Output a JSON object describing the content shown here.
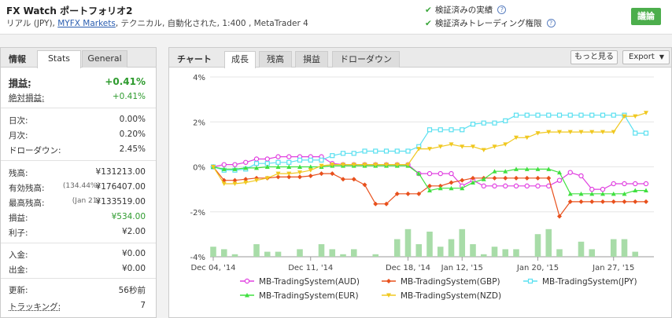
{
  "header": {
    "title": "FX Watch ポートフォリオ2",
    "subtitle_pre": "リアル (JPY), ",
    "broker_link": "MYFX Markets",
    "subtitle_post": ", テクニカル, 自動化された, 1:400 , MetaTrader 4",
    "verify_record": "検証済みの実績",
    "verify_trading": "検証済みトレーディング権限",
    "discuss_label": "議論",
    "check_glyph": "✔",
    "help_glyph": "?"
  },
  "left_panel": {
    "title": "情報",
    "tab_stats": "Stats",
    "tab_general": "General",
    "gain_label": "損益:",
    "gain_value": "+0.41%",
    "abs_gain_label": "絶対損益:",
    "abs_gain_value": "+0.41%",
    "daily_label": "日次:",
    "daily_value": "0.00%",
    "monthly_label": "月次:",
    "monthly_value": "0.20%",
    "drawdown_label": "ドローダウン:",
    "drawdown_value": "2.45%",
    "balance_label": "残高:",
    "balance_value": "¥131213.00",
    "equity_label": "有効残高:",
    "equity_pct": "(134.44%)",
    "equity_value": "¥176407.00",
    "highest_label": "最高残高:",
    "highest_date": "(Jan 21)",
    "highest_value": "¥133519.00",
    "profit_label": "損益:",
    "profit_value": "¥534.00",
    "interest_label": "利子:",
    "interest_value": "¥2.00",
    "deposits_label": "入金:",
    "deposits_value": "¥0.00",
    "withdrawals_label": "出金:",
    "withdrawals_value": "¥0.00",
    "updated_label": "更新:",
    "updated_value": "56秒前",
    "tracking_label": "トラッキング:",
    "tracking_value": "7"
  },
  "chart_panel": {
    "title": "チャート",
    "tabs": [
      "成長",
      "残高",
      "損益",
      "ドローダウン"
    ],
    "more_label": "もっと見る",
    "export_label": "Export",
    "export_chevron": "▼"
  },
  "chart_data": {
    "type": "line",
    "y_ticks": [
      "4%",
      "2%",
      "0%",
      "-2%",
      "-4%"
    ],
    "ylim": [
      -4,
      4
    ],
    "x_ticks": [
      "Dec 04, '14",
      "Dec 11, '14",
      "Dec 18, '14",
      "Jan 12, '15",
      "Jan 20, '15",
      "Jan 27, '15"
    ],
    "colors": {
      "AUD": "#e040e0",
      "GBP": "#e8501c",
      "JPY": "#5ae0f0",
      "EUR": "#40e040",
      "NZD": "#f0c820",
      "bars": "#a8dca8"
    },
    "series": [
      {
        "name": "MB-TradingSystem(AUD)",
        "key": "AUD",
        "marker": "circle",
        "values": [
          0,
          0.1,
          0.1,
          0.2,
          0.35,
          0.35,
          0.45,
          0.45,
          0.45,
          0.45,
          0.45,
          0.15,
          0.1,
          0.1,
          0.1,
          0.1,
          0.1,
          0.1,
          0.1,
          -0.3,
          -0.3,
          -0.3,
          -0.3,
          -0.85,
          -0.6,
          -0.85,
          -0.85,
          -0.85,
          -0.85,
          -0.85,
          -0.85,
          -0.85,
          -0.6,
          -0.25,
          -0.4,
          -1.0,
          -1.0,
          -0.75,
          -0.75,
          -0.75,
          -0.75
        ]
      },
      {
        "name": "MB-TradingSystem(GBP)",
        "key": "GBP",
        "marker": "diamond",
        "values": [
          0,
          -0.6,
          -0.6,
          -0.55,
          -0.5,
          -0.5,
          -0.45,
          -0.45,
          -0.45,
          -0.4,
          -0.3,
          -0.3,
          -0.55,
          -0.55,
          -0.8,
          -1.65,
          -1.65,
          -1.2,
          -1.2,
          -1.2,
          -0.85,
          -0.85,
          -0.7,
          -0.6,
          -0.5,
          -0.5,
          -0.5,
          -0.5,
          -0.5,
          -0.5,
          -0.5,
          -0.5,
          -2.2,
          -1.55,
          -1.55,
          -1.55,
          -1.55,
          -1.55,
          -1.55,
          -1.55,
          -1.55
        ]
      },
      {
        "name": "MB-TradingSystem(JPY)",
        "key": "JPY",
        "marker": "square",
        "values": [
          0,
          -0.15,
          -0.15,
          -0.1,
          0.15,
          0.15,
          0.2,
          0.2,
          0.3,
          0.3,
          0.3,
          0.5,
          0.6,
          0.6,
          0.7,
          0.7,
          0.7,
          0.7,
          0.7,
          0.9,
          1.65,
          1.65,
          1.65,
          1.65,
          1.9,
          1.95,
          1.95,
          2.05,
          2.3,
          2.3,
          2.3,
          2.3,
          2.3,
          2.3,
          2.3,
          2.3,
          2.3,
          2.3,
          2.3,
          1.5,
          1.5
        ]
      },
      {
        "name": "MB-TradingSystem(EUR)",
        "key": "EUR",
        "marker": "triangle",
        "values": [
          0,
          -0.1,
          -0.1,
          -0.05,
          -0.05,
          0,
          0,
          0,
          0,
          0,
          0,
          0.05,
          0.05,
          0.05,
          0.05,
          0.05,
          0.05,
          0.05,
          0.05,
          -0.3,
          -1.05,
          -0.95,
          -0.95,
          -0.95,
          -0.7,
          -0.55,
          -0.2,
          -0.2,
          -0.1,
          -0.1,
          -0.1,
          -0.1,
          -0.25,
          -1.2,
          -1.2,
          -1.2,
          -1.2,
          -1.2,
          -1.2,
          -1.05,
          -1.05
        ]
      },
      {
        "name": "MB-TradingSystem(NZD)",
        "key": "NZD",
        "marker": "triangle-down",
        "values": [
          0,
          -0.75,
          -0.75,
          -0.7,
          -0.6,
          -0.5,
          -0.3,
          -0.3,
          -0.25,
          -0.15,
          0.05,
          0.1,
          0.1,
          0.1,
          0.1,
          0.1,
          0.1,
          0.1,
          0.1,
          0.8,
          0.8,
          0.9,
          1.0,
          0.9,
          0.9,
          0.75,
          0.9,
          1.0,
          1.3,
          1.3,
          1.5,
          1.55,
          1.55,
          1.55,
          1.55,
          1.55,
          1.55,
          1.55,
          2.25,
          2.25,
          2.4
        ]
      }
    ],
    "volume_bars": [
      4,
      3,
      1,
      0,
      5,
      2,
      2,
      0,
      3,
      0,
      5,
      3,
      1,
      3,
      0,
      1,
      0,
      7,
      11,
      5,
      10,
      4,
      7,
      11,
      5,
      1,
      4,
      3,
      3,
      0,
      9,
      11,
      3,
      0,
      6,
      3,
      0,
      7,
      7,
      2,
      0
    ]
  }
}
